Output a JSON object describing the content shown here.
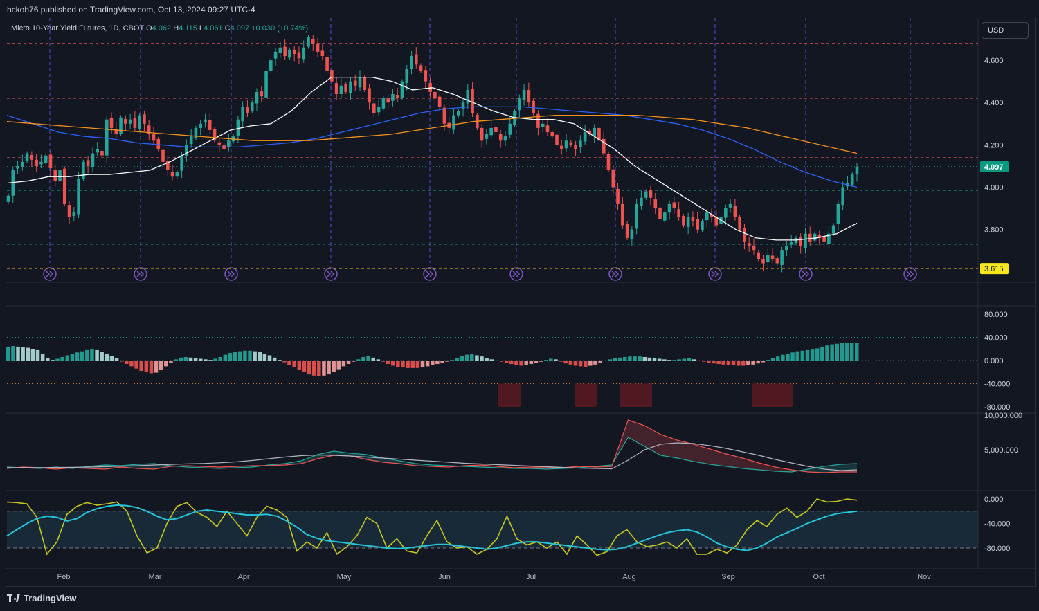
{
  "header": {
    "published": "hckoh76 published on TradingView.com, Oct 13, 2024 09:27 UTC-4"
  },
  "symbol": {
    "name": "Micro 10-Year Yield Futures, 1D, CBOT",
    "o_label": "O",
    "o_value": "4.062",
    "h_label": "H",
    "h_value": "4.115",
    "l_label": "L",
    "l_value": "4.061",
    "c_label": "C",
    "c_value": "4.097",
    "change": "+0.030 (+0.74%)"
  },
  "currency": {
    "label": "USD"
  },
  "footer": {
    "brand": "TradingView"
  },
  "colors": {
    "background": "#131722",
    "up": "#26a69a",
    "down": "#ef5350",
    "sma_short": "#ffffff",
    "sma_mid": "#2962ff",
    "sma_long": "#f7931a",
    "oscillator": "#c8c81e",
    "signal": "#26c6da"
  },
  "icons": {
    "time_marker": "double-chevron-right-icon"
  },
  "chart_data": [
    {
      "type": "candlestick",
      "title": "Micro 10-Year Yield Futures, 1D, CBOT",
      "ylim": [
        3.55,
        4.8
      ],
      "yticks": [
        "4.600",
        "4.400",
        "4.200",
        "4.000",
        "3.800"
      ],
      "last_price_label": "4.097",
      "level_label": "3.615",
      "horizontal_levels": [
        4.68,
        4.42,
        4.14,
        3.985,
        3.73,
        3.615
      ],
      "months": [
        "Feb",
        "Mar",
        "Apr",
        "May",
        "Jun",
        "Jul",
        "Aug",
        "Sep",
        "Oct",
        "Nov"
      ],
      "closes": [
        3.96,
        4.08,
        4.1,
        4.12,
        4.16,
        4.13,
        4.1,
        4.12,
        4.15,
        4.09,
        4.03,
        4.08,
        3.92,
        3.86,
        3.88,
        4.04,
        4.12,
        4.1,
        4.16,
        4.18,
        4.15,
        4.32,
        4.28,
        4.25,
        4.33,
        4.3,
        4.32,
        4.28,
        4.34,
        4.3,
        4.25,
        4.22,
        4.18,
        4.12,
        4.08,
        4.05,
        4.07,
        4.15,
        4.2,
        4.24,
        4.28,
        4.3,
        4.32,
        4.27,
        4.22,
        4.2,
        4.18,
        4.22,
        4.24,
        4.32,
        4.38,
        4.35,
        4.4,
        4.45,
        4.43,
        4.55,
        4.6,
        4.64,
        4.66,
        4.62,
        4.65,
        4.63,
        4.61,
        4.66,
        4.71,
        4.68,
        4.64,
        4.62,
        4.55,
        4.5,
        4.44,
        4.48,
        4.45,
        4.5,
        4.48,
        4.52,
        4.46,
        4.4,
        4.35,
        4.38,
        4.42,
        4.4,
        4.44,
        4.42,
        4.5,
        4.56,
        4.62,
        4.58,
        4.55,
        4.5,
        4.45,
        4.42,
        4.38,
        4.3,
        4.28,
        4.34,
        4.36,
        4.4,
        4.46,
        4.35,
        4.28,
        4.22,
        4.25,
        4.28,
        4.26,
        4.22,
        4.24,
        4.3,
        4.36,
        4.42,
        4.46,
        4.4,
        4.35,
        4.28,
        4.3,
        4.26,
        4.24,
        4.2,
        4.18,
        4.22,
        4.2,
        4.18,
        4.22,
        4.26,
        4.25,
        4.28,
        4.22,
        4.16,
        4.08,
        4.0,
        3.92,
        3.82,
        3.76,
        3.8,
        3.92,
        3.95,
        3.98,
        3.95,
        3.9,
        3.85,
        3.88,
        3.92,
        3.9,
        3.86,
        3.82,
        3.86,
        3.84,
        3.8,
        3.84,
        3.88,
        3.86,
        3.82,
        3.86,
        3.9,
        3.92,
        3.86,
        3.8,
        3.74,
        3.72,
        3.7,
        3.66,
        3.64,
        3.68,
        3.66,
        3.64,
        3.7,
        3.72,
        3.74,
        3.76,
        3.72,
        3.78,
        3.74,
        3.78,
        3.76,
        3.74,
        3.78,
        3.82,
        3.92,
        4.0,
        4.02,
        4.06,
        4.097
      ],
      "series": [
        {
          "name": "SMA-short",
          "color": "#ffffff",
          "values": [
            4.02,
            4.03,
            4.05,
            4.05,
            4.06,
            4.06,
            4.07,
            4.08,
            4.12,
            4.17,
            4.22,
            4.27,
            4.29,
            4.3,
            4.36,
            4.45,
            4.52,
            4.52,
            4.52,
            4.5,
            4.46,
            4.47,
            4.44,
            4.4,
            4.36,
            4.33,
            4.32,
            4.32,
            4.3,
            4.24,
            4.18,
            4.1,
            4.04,
            3.98,
            3.92,
            3.86,
            3.8,
            3.76,
            3.75,
            3.75,
            3.76,
            3.78,
            3.83
          ]
        },
        {
          "name": "SMA-mid",
          "color": "#2962ff",
          "values": [
            4.34,
            4.3,
            4.26,
            4.24,
            4.23,
            4.21,
            4.2,
            4.19,
            4.19,
            4.19,
            4.2,
            4.21,
            4.23,
            4.26,
            4.29,
            4.32,
            4.35,
            4.37,
            4.38,
            4.38,
            4.38,
            4.37,
            4.36,
            4.35,
            4.34,
            4.32,
            4.3,
            4.27,
            4.23,
            4.18,
            4.12,
            4.07,
            4.03,
            4.0
          ]
        },
        {
          "name": "SMA-long",
          "color": "#f7931a",
          "values": [
            4.31,
            4.3,
            4.29,
            4.28,
            4.27,
            4.26,
            4.25,
            4.24,
            4.23,
            4.22,
            4.22,
            4.22,
            4.23,
            4.24,
            4.25,
            4.27,
            4.29,
            4.31,
            4.32,
            4.33,
            4.34,
            4.34,
            4.34,
            4.34,
            4.33,
            4.32,
            4.3,
            4.28,
            4.25,
            4.22,
            4.19,
            4.16
          ]
        }
      ]
    },
    {
      "type": "bar",
      "ylim": [
        -95,
        95
      ],
      "yticks": [
        "80.000",
        "40.000",
        "0.000",
        "-40.000",
        "-80.000"
      ],
      "series_name": "histogram",
      "values": [
        24,
        25,
        24,
        23,
        22,
        20,
        18,
        12,
        4,
        1,
        3,
        6,
        9,
        12,
        14,
        16,
        18,
        20,
        18,
        15,
        12,
        8,
        4,
        -2,
        -6,
        -10,
        -14,
        -18,
        -20,
        -22,
        -21,
        -16,
        -10,
        -4,
        2,
        5,
        6,
        5,
        4,
        3,
        2,
        1,
        3,
        6,
        10,
        13,
        15,
        16,
        17,
        17,
        16,
        15,
        12,
        9,
        5,
        1,
        -3,
        -8,
        -12,
        -16,
        -20,
        -24,
        -26,
        -27,
        -26,
        -24,
        -20,
        -15,
        -10,
        -6,
        -2,
        2,
        6,
        8,
        5,
        2,
        -2,
        -6,
        -9,
        -11,
        -12,
        -13,
        -13,
        -13,
        -12,
        -10,
        -8,
        -6,
        -4,
        -2,
        1,
        4,
        8,
        10,
        11,
        9,
        7,
        4,
        2,
        0,
        -2,
        -4,
        -6,
        -8,
        -9,
        -8,
        -6,
        -4,
        -2,
        1,
        3,
        2,
        -2,
        -5,
        -7,
        -9,
        -10,
        -11,
        -9,
        -7,
        -4,
        -1,
        2,
        4,
        5,
        6,
        7,
        7,
        7,
        6,
        5,
        4,
        3,
        2,
        1,
        1,
        2,
        3,
        4,
        2,
        0,
        -2,
        -4,
        -5,
        -6,
        -7,
        -8,
        -8,
        -9,
        -9,
        -8,
        -7,
        -5,
        -3,
        1,
        4,
        7,
        10,
        12,
        14,
        16,
        17,
        18,
        19,
        21,
        24,
        26,
        28,
        29,
        30,
        30,
        30,
        30
      ],
      "shaded_regions_label": "bands"
    },
    {
      "type": "area",
      "ylim": [
        0,
        10000
      ],
      "yticks": [
        "10,000.000",
        "5,000.000"
      ],
      "series": [
        {
          "name": "up-line",
          "color": "#26a69a",
          "values": [
            2500,
            2400,
            2300,
            2500,
            2300,
            2600,
            2800,
            2700,
            2900,
            3000,
            2700,
            2500,
            2400,
            2300,
            2400,
            2500,
            2800,
            3000,
            3400,
            4300,
            4800,
            4500,
            4300,
            3800,
            3400,
            3000,
            2800,
            2700,
            2600,
            2500,
            2400,
            2300,
            2300,
            2200,
            2300,
            2400,
            2600,
            2800,
            6800,
            5500,
            4200,
            3800,
            3300,
            2900,
            2600,
            2300,
            2100,
            1900,
            1800,
            2200,
            2600,
            2900,
            3000
          ]
        },
        {
          "name": "down-line",
          "color": "#ef5350",
          "values": [
            2300,
            2500,
            2400,
            2200,
            2400,
            2300,
            2200,
            2500,
            2300,
            2200,
            2600,
            2700,
            2600,
            2500,
            2600,
            2700,
            2700,
            2800,
            3000,
            3700,
            4200,
            4100,
            3600,
            3200,
            3000,
            2700,
            2600,
            2500,
            2700,
            2800,
            2600,
            2400,
            2500,
            2500,
            2400,
            2600,
            2500,
            2600,
            9300,
            8500,
            7200,
            6400,
            5800,
            5100,
            4400,
            3800,
            3100,
            2500,
            2100,
            1800,
            1700,
            1800,
            1800
          ]
        },
        {
          "name": "signal",
          "color": "#b2b5be",
          "values": [
            2400,
            2410,
            2420,
            2440,
            2460,
            2500,
            2560,
            2620,
            2700,
            2800,
            2880,
            2960,
            3020,
            3120,
            3250,
            3450,
            3700,
            3950,
            4150,
            4250,
            4200,
            4100,
            3950,
            3800,
            3650,
            3500,
            3350,
            3200,
            3050,
            2950,
            2850,
            2750,
            2650,
            2550,
            2450,
            2350,
            2300,
            2250,
            3500,
            5000,
            5800,
            6000,
            5900,
            5600,
            5200,
            4700,
            4200,
            3600,
            3100,
            2600,
            2200,
            2000,
            2100
          ]
        }
      ]
    },
    {
      "type": "line",
      "ylim": [
        -100,
        10
      ],
      "yticks": [
        "0.000",
        "-40.000",
        "-80.000"
      ],
      "band": [
        -80,
        -20
      ],
      "series": [
        {
          "name": "osc",
          "color": "#c8c81e",
          "values": [
            -5,
            -6,
            -8,
            -30,
            -90,
            -70,
            -25,
            -12,
            -6,
            -10,
            -8,
            -5,
            -20,
            -60,
            -88,
            -80,
            -40,
            -12,
            -6,
            -22,
            -30,
            -45,
            -20,
            -40,
            -60,
            -30,
            -12,
            -18,
            -30,
            -85,
            -70,
            -80,
            -55,
            -90,
            -78,
            -60,
            -30,
            -40,
            -80,
            -65,
            -85,
            -88,
            -60,
            -35,
            -70,
            -80,
            -78,
            -90,
            -82,
            -65,
            -28,
            -65,
            -75,
            -70,
            -80,
            -70,
            -90,
            -60,
            -75,
            -92,
            -86,
            -60,
            -50,
            -70,
            -78,
            -75,
            -70,
            -80,
            -65,
            -90,
            -90,
            -82,
            -88,
            -75,
            -50,
            -35,
            -45,
            -25,
            -15,
            -30,
            -20,
            0,
            -5,
            -4,
            0,
            -2
          ]
        },
        {
          "name": "signal",
          "color": "#26c6da",
          "values": [
            -60,
            -50,
            -40,
            -32,
            -28,
            -30,
            -36,
            -32,
            -22,
            -16,
            -12,
            -10,
            -11,
            -14,
            -20,
            -28,
            -34,
            -32,
            -26,
            -20,
            -18,
            -20,
            -22,
            -24,
            -26,
            -26,
            -25,
            -28,
            -36,
            -46,
            -58,
            -64,
            -68,
            -70,
            -72,
            -74,
            -76,
            -78,
            -80,
            -81,
            -80,
            -78,
            -76,
            -74,
            -74,
            -76,
            -78,
            -80,
            -82,
            -80,
            -76,
            -72,
            -70,
            -70,
            -72,
            -74,
            -76,
            -78,
            -80,
            -82,
            -83,
            -82,
            -78,
            -72,
            -66,
            -60,
            -55,
            -52,
            -50,
            -54,
            -62,
            -72,
            -78,
            -82,
            -84,
            -80,
            -72,
            -62,
            -55,
            -48,
            -40,
            -34,
            -28,
            -24,
            -22,
            -20
          ]
        }
      ]
    }
  ]
}
